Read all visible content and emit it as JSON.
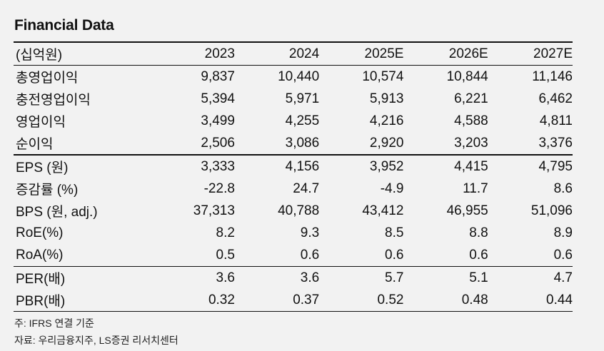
{
  "title": "Financial Data",
  "table": {
    "unit_label": "(십억원)",
    "columns": [
      "2023",
      "2024",
      "2025E",
      "2026E",
      "2027E"
    ],
    "rows": [
      {
        "label": "총영업이익",
        "values": [
          "9,837",
          "10,440",
          "10,574",
          "10,844",
          "11,146"
        ]
      },
      {
        "label": "충전영업이익",
        "values": [
          "5,394",
          "5,971",
          "5,913",
          "6,221",
          "6,462"
        ]
      },
      {
        "label": "영업이익",
        "values": [
          "3,499",
          "4,255",
          "4,216",
          "4,588",
          "4,811"
        ]
      },
      {
        "label": "순이익",
        "values": [
          "2,506",
          "3,086",
          "2,920",
          "3,203",
          "3,376"
        ]
      },
      {
        "label": "EPS (원)",
        "values": [
          "3,333",
          "4,156",
          "3,952",
          "4,415",
          "4,795"
        ]
      },
      {
        "label": "증감률 (%)",
        "values": [
          "-22.8",
          "24.7",
          "-4.9",
          "11.7",
          "8.6"
        ]
      },
      {
        "label": "BPS (원, adj.)",
        "values": [
          "37,313",
          "40,788",
          "43,412",
          "46,955",
          "51,096"
        ]
      },
      {
        "label": "RoE(%)",
        "values": [
          "8.2",
          "9.3",
          "8.5",
          "8.8",
          "8.9"
        ]
      },
      {
        "label": "RoA(%)",
        "values": [
          "0.5",
          "0.6",
          "0.6",
          "0.6",
          "0.6"
        ]
      },
      {
        "label": "PER(배)",
        "values": [
          "3.6",
          "3.6",
          "5.7",
          "5.1",
          "4.7"
        ]
      },
      {
        "label": "PBR(배)",
        "values": [
          "0.32",
          "0.37",
          "0.52",
          "0.48",
          "0.44"
        ]
      }
    ]
  },
  "notes": {
    "note": "주: IFRS 연결 기준",
    "source": "자료: 우리금융지주, LS증권 리서치센터"
  }
}
